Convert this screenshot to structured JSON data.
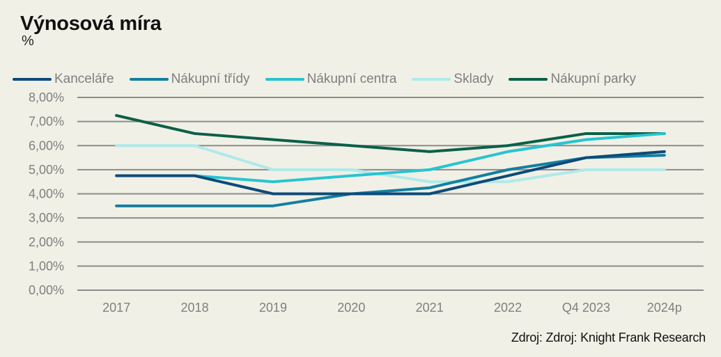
{
  "header": {
    "title": "Výnosová míra",
    "unit": "%"
  },
  "source": "Zdroj: Zdroj:  Knight Frank Research",
  "chart_data": {
    "type": "line",
    "title": "Výnosová míra",
    "subtitle": "%",
    "xlabel": "",
    "ylabel": "",
    "categories": [
      "2017",
      "2018",
      "2019",
      "2020",
      "2021",
      "2022",
      "Q4 2023",
      "2024p"
    ],
    "yticks": [
      "0,00%",
      "1,00%",
      "2,00%",
      "3,00%",
      "4,00%",
      "5,00%",
      "6,00%",
      "7,00%",
      "8,00%"
    ],
    "ylim": [
      0,
      8
    ],
    "grid": true,
    "legend_position": "top",
    "series": [
      {
        "name": "Kanceláře",
        "color": "#0d4a7a",
        "values": [
          4.75,
          4.75,
          4.0,
          4.0,
          4.0,
          4.75,
          5.5,
          5.75
        ]
      },
      {
        "name": "Nákupní třídy",
        "color": "#137fa0",
        "values": [
          3.5,
          3.5,
          3.5,
          4.0,
          4.25,
          5.0,
          5.5,
          5.6
        ]
      },
      {
        "name": "Nákupní centra",
        "color": "#26c4d2",
        "values": [
          4.75,
          4.75,
          4.5,
          4.75,
          5.0,
          5.75,
          6.25,
          6.5
        ]
      },
      {
        "name": "Sklady",
        "color": "#aee9ea",
        "values": [
          6.0,
          6.0,
          5.0,
          5.0,
          4.5,
          4.5,
          5.0,
          5.0
        ]
      },
      {
        "name": "Nákupní parky",
        "color": "#0a6048",
        "values": [
          7.25,
          6.5,
          6.25,
          6.0,
          5.75,
          6.0,
          6.5,
          6.5
        ]
      }
    ],
    "draw_order": [
      4,
      3,
      2,
      1,
      0
    ]
  }
}
